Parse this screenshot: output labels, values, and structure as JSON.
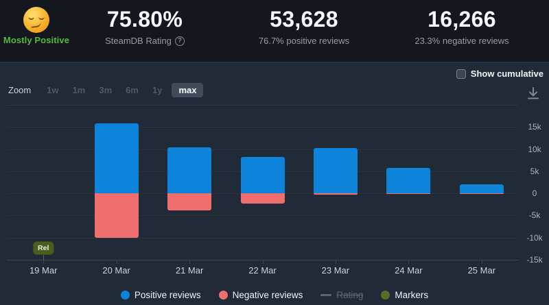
{
  "header": {
    "rating_emoji": "smirking-face",
    "rating_label": "Mostly Positive",
    "rating_color": "#56b93d",
    "stats": [
      {
        "value": "75.80%",
        "caption": "SteamDB Rating",
        "has_help_icon": true
      },
      {
        "value": "53,628",
        "caption": "76.7% positive reviews"
      },
      {
        "value": "16,266",
        "caption": "23.3% negative reviews"
      }
    ]
  },
  "toolbar": {
    "zoom_label": "Zoom",
    "ranges": [
      {
        "label": "1w",
        "active": false
      },
      {
        "label": "1m",
        "active": false
      },
      {
        "label": "3m",
        "active": false
      },
      {
        "label": "6m",
        "active": false
      },
      {
        "label": "1y",
        "active": false
      },
      {
        "label": "max",
        "active": true
      }
    ],
    "cumulative_label": "Show cumulative",
    "cumulative_checked": false
  },
  "chart_data": {
    "type": "bar",
    "stacked": true,
    "categories": [
      "19 Mar",
      "20 Mar",
      "21 Mar",
      "22 Mar",
      "23 Mar",
      "24 Mar",
      "25 Mar"
    ],
    "series": [
      {
        "name": "Positive reviews",
        "color": "#0d84da",
        "values": [
          0,
          15800,
          10400,
          8200,
          10200,
          5750,
          2100
        ]
      },
      {
        "name": "Negative reviews",
        "color": "#ef6f6f",
        "values": [
          0,
          -10000,
          -3800,
          -2250,
          -300,
          -100,
          -50
        ]
      }
    ],
    "markers": [
      {
        "label": "Rel",
        "category_index": 0,
        "color": "#4c5e1e"
      }
    ],
    "yticks": [
      {
        "label": "15k",
        "value": 15000
      },
      {
        "label": "10k",
        "value": 10000
      },
      {
        "label": "5k",
        "value": 5000
      },
      {
        "label": "0",
        "value": 0
      },
      {
        "label": "-5k",
        "value": -5000
      },
      {
        "label": "-10k",
        "value": -10000
      },
      {
        "label": "-15k",
        "value": -15000
      }
    ],
    "ylim": [
      -15000,
      20000
    ],
    "grid": true,
    "legend_position": "bottom",
    "legend": [
      {
        "name": "Positive reviews",
        "swatch": "circle",
        "color": "#0d84da",
        "disabled": false
      },
      {
        "name": "Negative reviews",
        "swatch": "circle",
        "color": "#ef6f6f",
        "disabled": false
      },
      {
        "name": "Rating",
        "swatch": "line",
        "color": "#5a6673",
        "disabled": true
      },
      {
        "name": "Markers",
        "swatch": "circle",
        "color": "#5d6b24",
        "disabled": false
      }
    ]
  }
}
